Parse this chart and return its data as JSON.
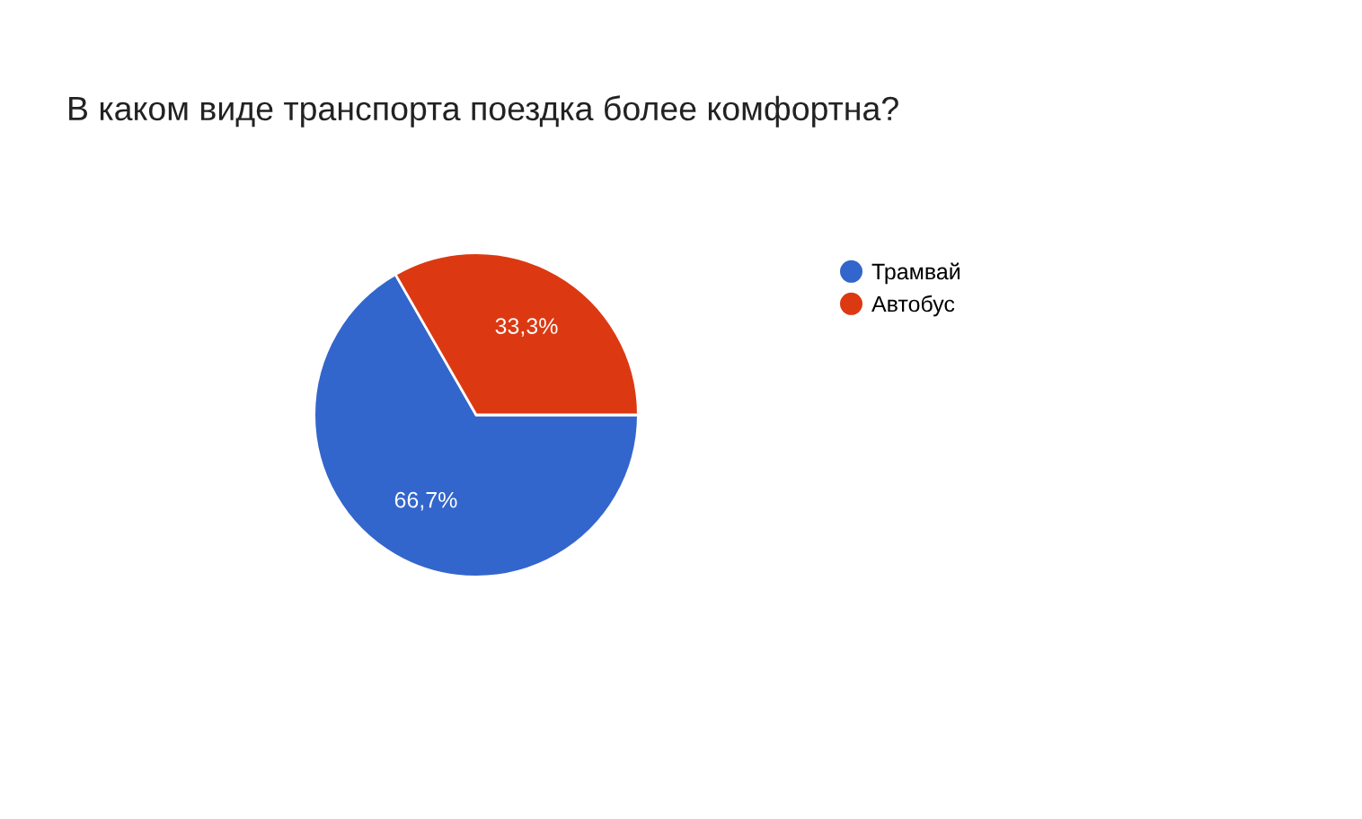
{
  "chart_data": {
    "type": "pie",
    "title": "В каком виде транспорта поездка более комфортна?",
    "categories": [
      "Трамвай",
      "Автобус"
    ],
    "values": [
      66.7,
      33.3
    ],
    "value_labels": [
      "66,7%",
      "33,3%"
    ],
    "colors": [
      "#3366cc",
      "#dc3912"
    ],
    "legend": "right"
  }
}
